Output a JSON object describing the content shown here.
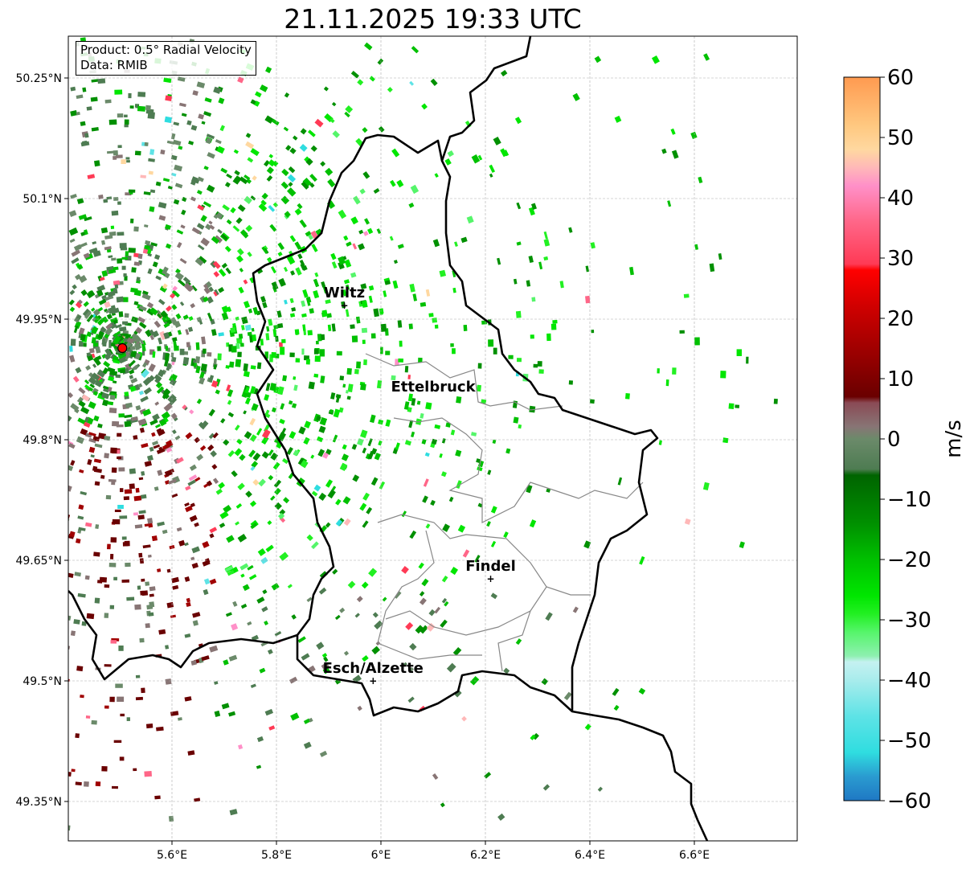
{
  "title": "21.11.2025 19:33 UTC",
  "info": {
    "product": "Product: 0.5° Radial Velocity",
    "data": "Data: RMIB"
  },
  "lon_ticks": [
    {
      "label": "5.6°E",
      "value": 5.6
    },
    {
      "label": "5.8°E",
      "value": 5.8
    },
    {
      "label": "6°E",
      "value": 6.0
    },
    {
      "label": "6.2°E",
      "value": 6.2
    },
    {
      "label": "6.4°E",
      "value": 6.4
    },
    {
      "label": "6.6°E",
      "value": 6.6
    }
  ],
  "lat_ticks": [
    {
      "label": "50.25°N",
      "value": 50.25
    },
    {
      "label": "50.1°N",
      "value": 50.1
    },
    {
      "label": "49.95°N",
      "value": 49.95
    },
    {
      "label": "49.8°N",
      "value": 49.8
    },
    {
      "label": "49.65°N",
      "value": 49.65
    },
    {
      "label": "49.5°N",
      "value": 49.5
    },
    {
      "label": "49.35°N",
      "value": 49.35
    }
  ],
  "cities": [
    {
      "name": "Wiltz",
      "lon": 5.93,
      "lat": 49.967
    },
    {
      "name": "Ettelbruck",
      "lon": 6.1,
      "lat": 49.85,
      "nomarker": true
    },
    {
      "name": "Findel",
      "lon": 6.21,
      "lat": 49.627
    },
    {
      "name": "Esch/Alzette",
      "lon": 5.985,
      "lat": 49.5
    }
  ],
  "radar_site": {
    "lon": 5.505,
    "lat": 49.914
  },
  "colorbar": {
    "label": "m/s",
    "min": -60,
    "max": 60,
    "ticks": [
      {
        "label": "60",
        "value": 60
      },
      {
        "label": "50",
        "value": 50
      },
      {
        "label": "40",
        "value": 40
      },
      {
        "label": "30",
        "value": 30
      },
      {
        "label": "20",
        "value": 20
      },
      {
        "label": "10",
        "value": 10
      },
      {
        "label": "0",
        "value": 0
      },
      {
        "label": "−10",
        "value": -10
      },
      {
        "label": "−20",
        "value": -20
      },
      {
        "label": "−30",
        "value": -30
      },
      {
        "label": "−40",
        "value": -40
      },
      {
        "label": "−50",
        "value": -50
      },
      {
        "label": "−60",
        "value": -60
      }
    ],
    "stops": [
      {
        "v": -60,
        "c": "#1f78c4"
      },
      {
        "v": -56,
        "c": "#2a9bd0"
      },
      {
        "v": -52,
        "c": "#2fdde0"
      },
      {
        "v": -46,
        "c": "#5ee3e6"
      },
      {
        "v": -40,
        "c": "#a8ecec"
      },
      {
        "v": -37,
        "c": "#c5f1f1"
      },
      {
        "v": -36,
        "c": "#8ef0b0"
      },
      {
        "v": -32,
        "c": "#55f56a"
      },
      {
        "v": -29,
        "c": "#22f022"
      },
      {
        "v": -26,
        "c": "#00e600"
      },
      {
        "v": -20,
        "c": "#00c000"
      },
      {
        "v": -14,
        "c": "#009000"
      },
      {
        "v": -6,
        "c": "#006400"
      },
      {
        "v": -5,
        "c": "#4e7c52"
      },
      {
        "v": 0,
        "c": "#6b8a6a"
      },
      {
        "v": 2,
        "c": "#887575"
      },
      {
        "v": 6,
        "c": "#8a4a55"
      },
      {
        "v": 7,
        "c": "#6a0000"
      },
      {
        "v": 15,
        "c": "#a00000"
      },
      {
        "v": 22,
        "c": "#d00000"
      },
      {
        "v": 28,
        "c": "#ff0000"
      },
      {
        "v": 29,
        "c": "#ff3a55"
      },
      {
        "v": 36,
        "c": "#ff6688"
      },
      {
        "v": 42,
        "c": "#ff90c8"
      },
      {
        "v": 45,
        "c": "#ffb8b8"
      },
      {
        "v": 48,
        "c": "#ffd8a0"
      },
      {
        "v": 52,
        "c": "#ffc880"
      },
      {
        "v": 60,
        "c": "#ff9a50"
      }
    ]
  }
}
